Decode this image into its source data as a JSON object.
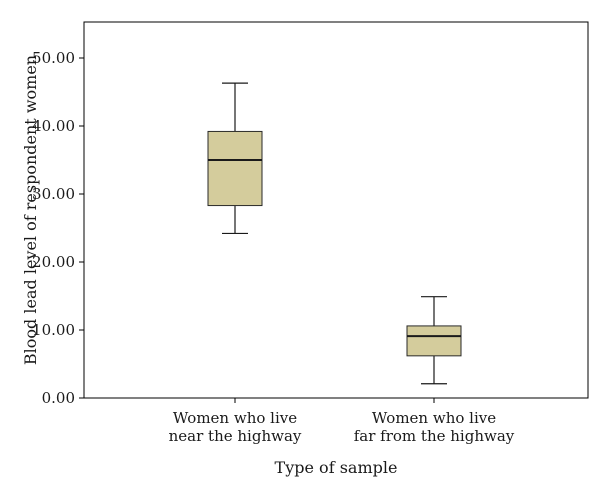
{
  "chart_data": {
    "type": "boxplot",
    "xlabel": "Type of sample",
    "ylabel": "Blood lead level of respondent women",
    "ylim": [
      0,
      55
    ],
    "y_ticks": [
      "0.00",
      "10.00",
      "20.00",
      "30.00",
      "40.00",
      "50.00"
    ],
    "y_tick_values": [
      0,
      10,
      20,
      30,
      40,
      50
    ],
    "grid": false,
    "box_color": "#d4cc9c",
    "categories": [
      [
        "Women who live",
        "near the highway"
      ],
      [
        "Women who live",
        "far from the highway"
      ]
    ],
    "boxes": [
      {
        "min": 24.2,
        "q1": 28.3,
        "median": 35.0,
        "q3": 39.2,
        "max": 46.3
      },
      {
        "min": 2.1,
        "q1": 6.2,
        "median": 9.1,
        "q3": 10.6,
        "max": 14.9
      }
    ]
  }
}
